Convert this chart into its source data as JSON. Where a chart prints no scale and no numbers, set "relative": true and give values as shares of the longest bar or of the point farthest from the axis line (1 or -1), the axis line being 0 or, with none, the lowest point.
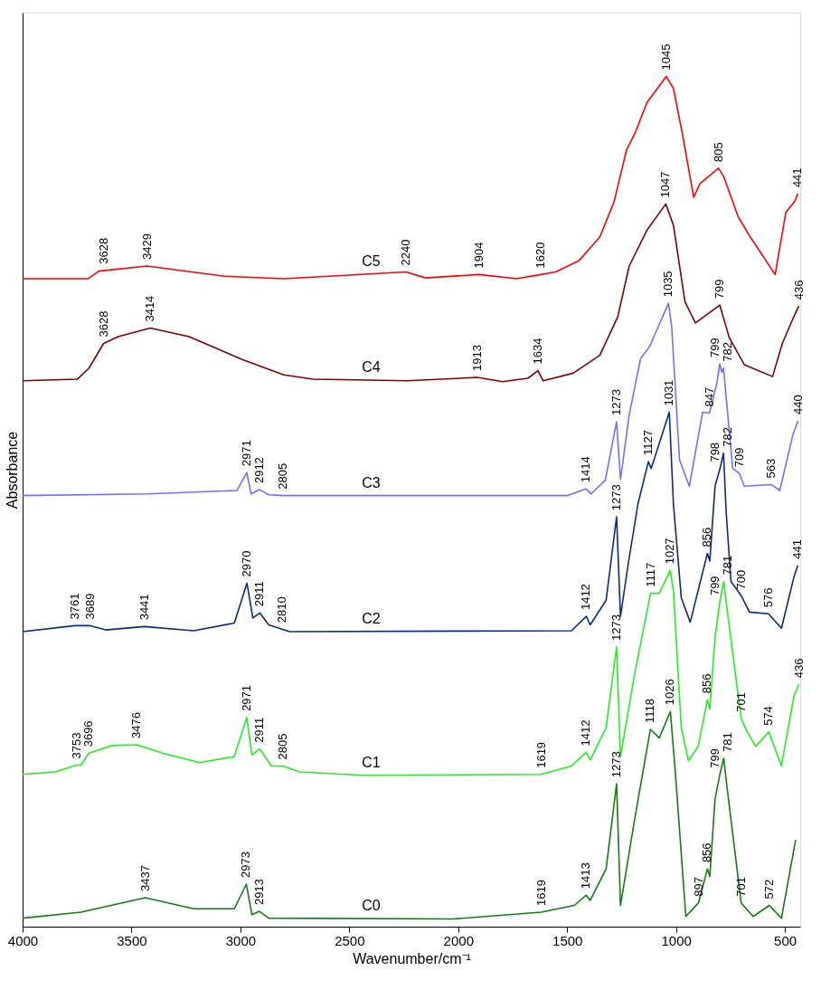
{
  "chart_data": {
    "type": "line",
    "relative": true,
    "xlabel": "Wavenumber/cm⁻¹",
    "ylabel": "Absorbance",
    "xlim": [
      4000,
      430
    ],
    "xticks": [
      4000,
      3500,
      3000,
      2500,
      2000,
      1500,
      1000,
      500
    ],
    "grid": false,
    "legend": false,
    "line_style": "solid",
    "series": [
      {
        "name": "C5",
        "color": "#ff0000",
        "x": [
          4000,
          3700,
          3650,
          3429,
          3073,
          2800,
          2240,
          2150,
          1904,
          1732,
          1620,
          1553,
          1447,
          1350,
          1284,
          1228,
          1187,
          1134,
          1045,
          1012,
          972,
          919,
          890,
          805,
          781,
          715,
          659,
          545,
          496,
          455,
          441
        ],
        "values": [
          0.762,
          0.762,
          0.771,
          0.777,
          0.765,
          0.762,
          0.77,
          0.763,
          0.767,
          0.762,
          0.767,
          0.77,
          0.783,
          0.811,
          0.853,
          0.913,
          0.934,
          0.969,
          1.0,
          0.986,
          0.934,
          0.858,
          0.874,
          0.892,
          0.882,
          0.835,
          0.811,
          0.767,
          0.84,
          0.853,
          0.862
        ]
      },
      {
        "name": "C4",
        "color": "#7f0000",
        "x": [
          4000,
          3748,
          3695,
          3628,
          3561,
          3414,
          3236,
          2992,
          2801,
          2667,
          2232,
          1913,
          1797,
          1680,
          1634,
          1610,
          1472,
          1350,
          1268,
          1215,
          1134,
          1047,
          1012,
          959,
          911,
          799,
          756,
          687,
          557,
          512,
          455,
          436
        ],
        "values": [
          0.642,
          0.644,
          0.657,
          0.686,
          0.694,
          0.704,
          0.694,
          0.667,
          0.649,
          0.644,
          0.642,
          0.646,
          0.641,
          0.645,
          0.654,
          0.642,
          0.651,
          0.672,
          0.717,
          0.777,
          0.819,
          0.85,
          0.825,
          0.735,
          0.71,
          0.731,
          0.693,
          0.661,
          0.647,
          0.686,
          0.72,
          0.73
        ]
      },
      {
        "name": "C3",
        "color": "#7070ff",
        "x": [
          4000,
          3423,
          3016,
          2971,
          2951,
          2912,
          2870,
          2805,
          1500,
          1414,
          1390,
          1325,
          1273,
          1255,
          1215,
          1163,
          1122,
          1035,
          1020,
          984,
          939,
          878,
          847,
          812,
          799,
          790,
          782,
          740,
          709,
          687,
          563,
          524,
          463,
          440
        ],
        "values": [
          0.507,
          0.509,
          0.513,
          0.534,
          0.509,
          0.514,
          0.508,
          0.507,
          0.507,
          0.515,
          0.509,
          0.525,
          0.594,
          0.526,
          0.602,
          0.668,
          0.682,
          0.733,
          0.706,
          0.549,
          0.518,
          0.605,
          0.604,
          0.64,
          0.662,
          0.652,
          0.657,
          0.539,
          0.533,
          0.518,
          0.52,
          0.513,
          0.579,
          0.595
        ]
      },
      {
        "name": "C2",
        "color": "#0a2a80",
        "x": [
          4000,
          3761,
          3689,
          3618,
          3441,
          3215,
          3028,
          2970,
          2943,
          2911,
          2870,
          2810,
          2772,
          1480,
          1412,
          1394,
          1321,
          1273,
          1255,
          1220,
          1175,
          1127,
          1114,
          1031,
          1012,
          976,
          935,
          856,
          845,
          821,
          798,
          782,
          770,
          748,
          700,
          663,
          576,
          516,
          459,
          441
        ],
        "values": [
          0.347,
          0.354,
          0.354,
          0.349,
          0.353,
          0.348,
          0.357,
          0.404,
          0.363,
          0.369,
          0.355,
          0.35,
          0.347,
          0.348,
          0.365,
          0.355,
          0.384,
          0.482,
          0.365,
          0.426,
          0.497,
          0.547,
          0.539,
          0.605,
          0.497,
          0.387,
          0.358,
          0.439,
          0.43,
          0.518,
          0.539,
          0.557,
          0.488,
          0.406,
          0.389,
          0.37,
          0.368,
          0.351,
          0.411,
          0.425
        ]
      },
      {
        "name": "C1",
        "color": "#22ee22",
        "x": [
          4000,
          3850,
          3753,
          3732,
          3696,
          3589,
          3476,
          3358,
          3187,
          3028,
          2971,
          2947,
          2911,
          2858,
          2805,
          2728,
          2439,
          1619,
          1480,
          1412,
          1394,
          1321,
          1273,
          1255,
          1191,
          1117,
          1077,
          1027,
          1012,
          976,
          943,
          898,
          856,
          845,
          821,
          799,
          781,
          765,
          701,
          675,
          634,
          574,
          516,
          459,
          436
        ],
        "values": [
          0.179,
          0.182,
          0.19,
          0.19,
          0.204,
          0.213,
          0.214,
          0.204,
          0.193,
          0.2,
          0.246,
          0.202,
          0.209,
          0.189,
          0.189,
          0.182,
          0.178,
          0.179,
          0.189,
          0.205,
          0.196,
          0.234,
          0.329,
          0.2,
          0.296,
          0.392,
          0.392,
          0.419,
          0.395,
          0.234,
          0.195,
          0.212,
          0.267,
          0.256,
          0.34,
          0.382,
          0.406,
          0.372,
          0.245,
          0.23,
          0.212,
          0.229,
          0.189,
          0.271,
          0.285
        ]
      },
      {
        "name": "C0",
        "color": "#147a14",
        "x": [
          4000,
          3732,
          3437,
          3215,
          3028,
          2973,
          2947,
          2913,
          2870,
          2024,
          1619,
          1467,
          1413,
          1394,
          1321,
          1273,
          1255,
          1191,
          1118,
          1077,
          1026,
          1004,
          955,
          897,
          856,
          845,
          821,
          799,
          781,
          765,
          701,
          646,
          572,
          516,
          451
        ],
        "values": [
          0.01,
          0.017,
          0.034,
          0.021,
          0.021,
          0.05,
          0.014,
          0.018,
          0.01,
          0.009,
          0.017,
          0.025,
          0.037,
          0.031,
          0.068,
          0.168,
          0.025,
          0.125,
          0.232,
          0.222,
          0.253,
          0.184,
          0.012,
          0.028,
          0.068,
          0.059,
          0.15,
          0.179,
          0.198,
          0.162,
          0.028,
          0.012,
          0.025,
          0.01,
          0.102
        ]
      }
    ],
    "annotations": [
      {
        "text": "3628",
        "x": 3628,
        "y": 0.772
      },
      {
        "text": "3429",
        "x": 3429,
        "y": 0.777
      },
      {
        "text": "2240",
        "x": 2240,
        "y": 0.77
      },
      {
        "text": "1904",
        "x": 1904,
        "y": 0.767
      },
      {
        "text": "1620",
        "x": 1620,
        "y": 0.767
      },
      {
        "text": "1045",
        "x": 1045,
        "y": 1.0
      },
      {
        "text": "805",
        "x": 805,
        "y": 0.892
      },
      {
        "text": "441",
        "x": 441,
        "y": 0.862
      },
      {
        "text": "3628",
        "x": 3628,
        "y": 0.686
      },
      {
        "text": "3414",
        "x": 3414,
        "y": 0.704
      },
      {
        "text": "1913",
        "x": 1913,
        "y": 0.646
      },
      {
        "text": "1634",
        "x": 1634,
        "y": 0.654
      },
      {
        "text": "1047",
        "x": 1047,
        "y": 0.85
      },
      {
        "text": "799",
        "x": 799,
        "y": 0.731
      },
      {
        "text": "436",
        "x": 436,
        "y": 0.73
      },
      {
        "text": "2971",
        "x": 2971,
        "y": 0.534
      },
      {
        "text": "2912",
        "x": 2912,
        "y": 0.514
      },
      {
        "text": "2805",
        "x": 2805,
        "y": 0.507
      },
      {
        "text": "1414",
        "x": 1414,
        "y": 0.515
      },
      {
        "text": "1273",
        "x": 1273,
        "y": 0.594
      },
      {
        "text": "1035",
        "x": 1035,
        "y": 0.733
      },
      {
        "text": "847",
        "x": 847,
        "y": 0.604
      },
      {
        "text": "799",
        "x": 799,
        "y": 0.662
      },
      {
        "text": "782",
        "x": 782,
        "y": 0.657
      },
      {
        "text": "709",
        "x": 709,
        "y": 0.533
      },
      {
        "text": "563",
        "x": 563,
        "y": 0.52
      },
      {
        "text": "440",
        "x": 440,
        "y": 0.595
      },
      {
        "text": "3761",
        "x": 3761,
        "y": 0.354
      },
      {
        "text": "3689",
        "x": 3689,
        "y": 0.354
      },
      {
        "text": "3441",
        "x": 3441,
        "y": 0.353
      },
      {
        "text": "2970",
        "x": 2970,
        "y": 0.404
      },
      {
        "text": "2911",
        "x": 2911,
        "y": 0.369
      },
      {
        "text": "2810",
        "x": 2810,
        "y": 0.35
      },
      {
        "text": "1412",
        "x": 1412,
        "y": 0.365
      },
      {
        "text": "1273",
        "x": 1273,
        "y": 0.482
      },
      {
        "text": "1127",
        "x": 1127,
        "y": 0.547
      },
      {
        "text": "1031",
        "x": 1031,
        "y": 0.605
      },
      {
        "text": "856",
        "x": 856,
        "y": 0.439
      },
      {
        "text": "798",
        "x": 798,
        "y": 0.539
      },
      {
        "text": "782",
        "x": 782,
        "y": 0.557
      },
      {
        "text": "700",
        "x": 700,
        "y": 0.389
      },
      {
        "text": "576",
        "x": 576,
        "y": 0.368
      },
      {
        "text": "441",
        "x": 441,
        "y": 0.425
      },
      {
        "text": "3753",
        "x": 3753,
        "y": 0.19
      },
      {
        "text": "3696",
        "x": 3696,
        "y": 0.204
      },
      {
        "text": "3476",
        "x": 3476,
        "y": 0.214
      },
      {
        "text": "2971",
        "x": 2971,
        "y": 0.246
      },
      {
        "text": "2911",
        "x": 2911,
        "y": 0.209
      },
      {
        "text": "2805",
        "x": 2805,
        "y": 0.189
      },
      {
        "text": "1619",
        "x": 1619,
        "y": 0.179
      },
      {
        "text": "1412",
        "x": 1412,
        "y": 0.205
      },
      {
        "text": "1273",
        "x": 1273,
        "y": 0.329
      },
      {
        "text": "1117",
        "x": 1117,
        "y": 0.392
      },
      {
        "text": "1027",
        "x": 1027,
        "y": 0.419
      },
      {
        "text": "856",
        "x": 856,
        "y": 0.267
      },
      {
        "text": "799",
        "x": 799,
        "y": 0.382
      },
      {
        "text": "781",
        "x": 781,
        "y": 0.406
      },
      {
        "text": "701",
        "x": 701,
        "y": 0.245
      },
      {
        "text": "574",
        "x": 574,
        "y": 0.229
      },
      {
        "text": "436",
        "x": 436,
        "y": 0.285
      },
      {
        "text": "3437",
        "x": 3437,
        "y": 0.034
      },
      {
        "text": "2973",
        "x": 2973,
        "y": 0.05
      },
      {
        "text": "2913",
        "x": 2913,
        "y": 0.018
      },
      {
        "text": "1619",
        "x": 1619,
        "y": 0.017
      },
      {
        "text": "1413",
        "x": 1413,
        "y": 0.037
      },
      {
        "text": "1273",
        "x": 1273,
        "y": 0.168
      },
      {
        "text": "1118",
        "x": 1118,
        "y": 0.232
      },
      {
        "text": "1026",
        "x": 1026,
        "y": 0.253
      },
      {
        "text": "897",
        "x": 897,
        "y": 0.028
      },
      {
        "text": "856",
        "x": 856,
        "y": 0.068
      },
      {
        "text": "799",
        "x": 799,
        "y": 0.179
      },
      {
        "text": "781",
        "x": 781,
        "y": 0.198
      },
      {
        "text": "701",
        "x": 701,
        "y": 0.028
      },
      {
        "text": "572",
        "x": 572,
        "y": 0.025
      }
    ]
  }
}
